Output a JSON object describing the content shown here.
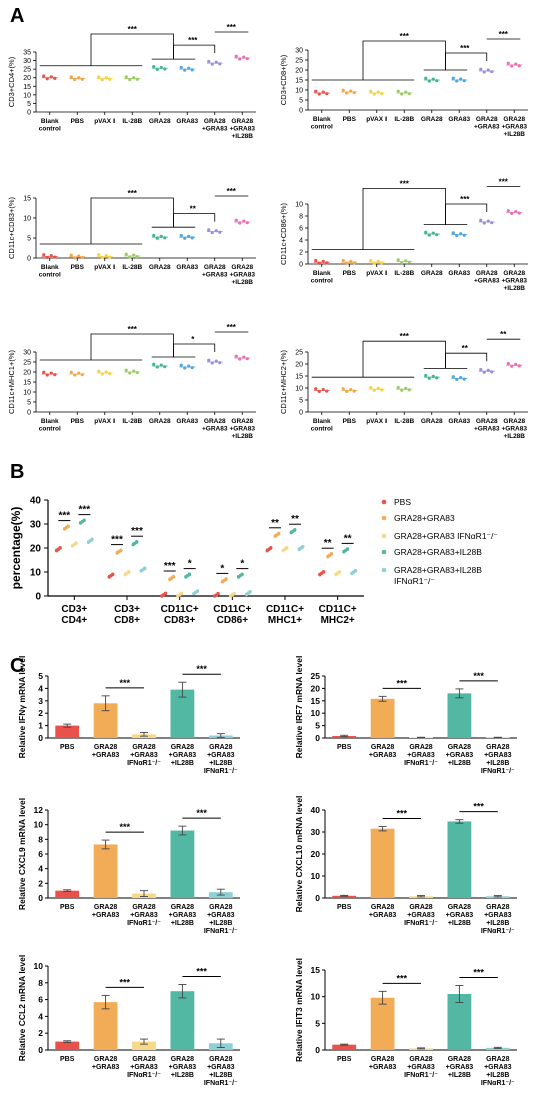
{
  "panel_letters": {
    "A": "A",
    "B": "B",
    "C": "C"
  },
  "colors": {
    "PBS": "#e8524a",
    "GRA28+GRA83": "#f2ac58",
    "GRA28+GRA83 IFNαR1-/-": "#f5d88a",
    "GRA28+GRA83+IL28B": "#52b8a3",
    "GRA28+GRA83+IL28B IFNαR1-/-": "#8fd0d6"
  },
  "panelA": {
    "groups": [
      "Blank control",
      "PBS",
      "pVAX I",
      "IL-28B",
      "GRA28",
      "GRA83",
      "GRA28 +GRA83",
      "GRA28 +GRA83 +IL28B"
    ],
    "group_colors": [
      "#e8524a",
      "#f2a64f",
      "#f3d34a",
      "#9ccc65",
      "#3fb98b",
      "#4fa6e0",
      "#9b8fd8",
      "#ea6fb3"
    ],
    "stars": "***",
    "charts": [
      {
        "ylabel": "CD3+CD4+(%)",
        "ylim": [
          0,
          35
        ],
        "ticks": [
          0,
          5,
          10,
          15,
          20,
          25,
          30,
          35
        ],
        "means": [
          20,
          19.5,
          19.5,
          19.5,
          25.5,
          25,
          28.5,
          31.5
        ],
        "sig": [
          {
            "from": 4,
            "to": 6,
            "label": "***"
          },
          {
            "from": 6,
            "to": 7,
            "label": "***"
          }
        ]
      },
      {
        "ylabel": "CD3+CD8+(%)",
        "ylim": [
          0,
          30
        ],
        "ticks": [
          0,
          5,
          10,
          15,
          20,
          25,
          30
        ],
        "means": [
          8.5,
          9,
          8.5,
          8.5,
          15,
          15,
          19.5,
          22.5
        ],
        "sig": [
          {
            "from": 4,
            "to": 6,
            "label": "***"
          },
          {
            "from": 6,
            "to": 7,
            "label": "***"
          }
        ]
      },
      {
        "ylabel": "CD11c+CD83+(%)",
        "ylim": [
          0,
          15
        ],
        "ticks": [
          0,
          5,
          10,
          15
        ],
        "means": [
          0.4,
          0.3,
          0.4,
          0.5,
          5.2,
          5.2,
          6.6,
          9.0
        ],
        "sig": [
          {
            "from": 4,
            "to": 6,
            "label": "**"
          },
          {
            "from": 6,
            "to": 7,
            "label": "***"
          }
        ]
      },
      {
        "ylabel": "CD11c+CD86+(%)",
        "ylim": [
          0,
          10
        ],
        "ticks": [
          0,
          2,
          4,
          6,
          8,
          10
        ],
        "means": [
          0.3,
          0.3,
          0.3,
          0.4,
          5.0,
          4.9,
          7.0,
          8.6
        ],
        "sig": [
          {
            "from": 4,
            "to": 6,
            "label": "***"
          },
          {
            "from": 6,
            "to": 7,
            "label": "***"
          }
        ]
      },
      {
        "ylabel": "CD11c+MHC1+(%)",
        "ylim": [
          0,
          30
        ],
        "ticks": [
          0,
          5,
          10,
          15,
          20,
          25,
          30
        ],
        "means": [
          19,
          19,
          19.5,
          20,
          23,
          22.5,
          25,
          27
        ],
        "sig": [
          {
            "from": 4,
            "to": 6,
            "label": "*"
          },
          {
            "from": 6,
            "to": 7,
            "label": "***"
          }
        ]
      },
      {
        "ylabel": "CD11c+MHC2+(%)",
        "ylim": [
          0,
          25
        ],
        "ticks": [
          0,
          5,
          10,
          15,
          20,
          25
        ],
        "means": [
          9,
          9,
          9.5,
          9.5,
          14.5,
          14,
          17,
          19.5
        ],
        "sig": [
          {
            "from": 4,
            "to": 6,
            "label": "**"
          },
          {
            "from": 6,
            "to": 7,
            "label": "**"
          }
        ]
      }
    ]
  },
  "panelB": {
    "ylabel": "percentage(%)",
    "ylim": [
      0,
      40
    ],
    "ticks": [
      0,
      10,
      20,
      30,
      40
    ],
    "categories": [
      "CD3+ CD4+",
      "CD3+ CD8+",
      "CD11C+ CD83+",
      "CD11C+ CD86+",
      "CD11C+ MHC1+",
      "CD11C+ MHC2+"
    ],
    "legend": [
      {
        "key": "PBS",
        "label": "PBS"
      },
      {
        "key": "GRA28+GRA83",
        "label": "GRA28+GRA83"
      },
      {
        "key": "GRA28+GRA83 IFNαR1-/-",
        "label": "GRA28+GRA83 IFNαR1⁻/⁻"
      },
      {
        "key": "GRA28+GRA83+IL28B",
        "label": "GRA28+GRA83+IL28B"
      },
      {
        "key": "GRA28+GRA83+IL28B IFNαR1-/-",
        "label": "GRA28+GRA83+IL28B IFNαR1⁻/⁻"
      }
    ],
    "series_values": [
      [
        19.5,
        8.5,
        0.5,
        0.4,
        19.5,
        9.5
      ],
      [
        28.5,
        18.5,
        7.5,
        6.5,
        25.5,
        17.0
      ],
      [
        21.5,
        9.5,
        0.5,
        0.4,
        19.5,
        9.5
      ],
      [
        31.0,
        22.0,
        8.5,
        8.5,
        27.0,
        19.0
      ],
      [
        23.0,
        11.0,
        1.5,
        1.2,
        20.0,
        10.0
      ]
    ],
    "sig": [
      [
        "***",
        "***"
      ],
      [
        "***",
        "***"
      ],
      [
        "***",
        "*"
      ],
      [
        "*",
        "*"
      ],
      [
        "**",
        "**"
      ],
      [
        "**",
        "**"
      ]
    ]
  },
  "panelC": {
    "groups": [
      "PBS",
      "GRA28 +GRA83",
      "GRA28 +GRA83 IFNαR1⁻/⁻",
      "GRA28 +GRA83 +IL28B",
      "GRA28 +GRA83 +IL28B IFNαR1⁻/⁻"
    ],
    "charts": [
      {
        "ylabel": "Relative IFNγ mRNA level",
        "ylim": [
          0,
          5
        ],
        "ticks": [
          0,
          1,
          2,
          3,
          4,
          5
        ],
        "values": [
          1.0,
          2.8,
          0.3,
          3.9,
          0.2
        ],
        "errors": [
          0.12,
          0.6,
          0.15,
          0.6,
          0.15
        ],
        "sig": [
          "***",
          "***"
        ]
      },
      {
        "ylabel": "Relative IRF7 mRNA level",
        "ylim": [
          0,
          25
        ],
        "ticks": [
          0,
          5,
          10,
          15,
          20,
          25
        ],
        "values": [
          0.8,
          15.8,
          0.2,
          18.0,
          0.2
        ],
        "errors": [
          0.3,
          1.0,
          0.1,
          1.8,
          0.1
        ],
        "sig": [
          "***",
          "***"
        ]
      },
      {
        "ylabel": "Relative CXCL9 mRNA level",
        "ylim": [
          0,
          12
        ],
        "ticks": [
          0,
          2,
          4,
          6,
          8,
          10,
          12
        ],
        "values": [
          1.0,
          7.3,
          0.6,
          9.2,
          0.8
        ],
        "errors": [
          0.12,
          0.6,
          0.4,
          0.6,
          0.4
        ],
        "sig": [
          "***",
          "***"
        ]
      },
      {
        "ylabel": "Relative CXCL10 mRNA level",
        "ylim": [
          0,
          40
        ],
        "ticks": [
          0,
          10,
          20,
          30,
          40
        ],
        "values": [
          1.0,
          31.5,
          0.8,
          34.8,
          0.8
        ],
        "errors": [
          0.2,
          1.0,
          0.3,
          0.8,
          0.3
        ],
        "sig": [
          "***",
          "***"
        ]
      },
      {
        "ylabel": "Relative CCL2 mRNA level",
        "ylim": [
          0,
          10
        ],
        "ticks": [
          0,
          2,
          4,
          6,
          8,
          10
        ],
        "values": [
          1.0,
          5.7,
          1.0,
          7.0,
          0.8
        ],
        "errors": [
          0.1,
          0.8,
          0.3,
          0.8,
          0.5
        ],
        "sig": [
          "***",
          "***"
        ]
      },
      {
        "ylabel": "Relative IFIT3 mRNA level",
        "ylim": [
          0,
          15
        ],
        "ticks": [
          0,
          5,
          10,
          15
        ],
        "values": [
          1.0,
          9.8,
          0.3,
          10.5,
          0.4
        ],
        "errors": [
          0.1,
          1.2,
          0.1,
          1.6,
          0.1
        ],
        "sig": [
          "***",
          "***"
        ]
      }
    ]
  },
  "chart_data": [
    {
      "type": "scatter",
      "panel": "A1",
      "ylabel": "CD3+CD4+(%)",
      "categories": [
        "Blank control",
        "PBS",
        "pVAX I",
        "IL-28B",
        "GRA28",
        "GRA83",
        "GRA28 +GRA83",
        "GRA28 +GRA83 +IL28B"
      ],
      "values": [
        20,
        19.5,
        19.5,
        19.5,
        25.5,
        25,
        28.5,
        31.5
      ],
      "ylim": [
        0,
        35
      ]
    },
    {
      "type": "scatter",
      "panel": "A2",
      "ylabel": "CD3+CD8+(%)",
      "categories": [
        "Blank control",
        "PBS",
        "pVAX I",
        "IL-28B",
        "GRA28",
        "GRA83",
        "GRA28 +GRA83",
        "GRA28 +GRA83 +IL28B"
      ],
      "values": [
        8.5,
        9,
        8.5,
        8.5,
        15,
        15,
        19.5,
        22.5
      ],
      "ylim": [
        0,
        30
      ]
    },
    {
      "type": "scatter",
      "panel": "A3",
      "ylabel": "CD11c+CD83+(%)",
      "categories": [
        "Blank control",
        "PBS",
        "pVAX I",
        "IL-28B",
        "GRA28",
        "GRA83",
        "GRA28 +GRA83",
        "GRA28 +GRA83 +IL28B"
      ],
      "values": [
        0.4,
        0.3,
        0.4,
        0.5,
        5.2,
        5.2,
        6.6,
        9.0
      ],
      "ylim": [
        0,
        15
      ]
    },
    {
      "type": "scatter",
      "panel": "A4",
      "ylabel": "CD11c+CD86+(%)",
      "categories": [
        "Blank control",
        "PBS",
        "pVAX I",
        "IL-28B",
        "GRA28",
        "GRA83",
        "GRA28 +GRA83",
        "GRA28 +GRA83 +IL28B"
      ],
      "values": [
        0.3,
        0.3,
        0.3,
        0.4,
        5.0,
        4.9,
        7.0,
        8.6
      ],
      "ylim": [
        0,
        10
      ]
    },
    {
      "type": "scatter",
      "panel": "A5",
      "ylabel": "CD11c+MHC1+(%)",
      "categories": [
        "Blank control",
        "PBS",
        "pVAX I",
        "IL-28B",
        "GRA28",
        "GRA83",
        "GRA28 +GRA83",
        "GRA28 +GRA83 +IL28B"
      ],
      "values": [
        19,
        19,
        19.5,
        20,
        23,
        22.5,
        25,
        27
      ],
      "ylim": [
        0,
        30
      ]
    },
    {
      "type": "scatter",
      "panel": "A6",
      "ylabel": "CD11c+MHC2+(%)",
      "categories": [
        "Blank control",
        "PBS",
        "pVAX I",
        "IL-28B",
        "GRA28",
        "GRA83",
        "GRA28 +GRA83",
        "GRA28 +GRA83 +IL28B"
      ],
      "values": [
        9,
        9,
        9.5,
        9.5,
        14.5,
        14,
        17,
        19.5
      ],
      "ylim": [
        0,
        25
      ]
    },
    {
      "type": "scatter",
      "panel": "B",
      "ylabel": "percentage(%)",
      "categories": [
        "CD3+ CD4+",
        "CD3+ CD8+",
        "CD11C+ CD83+",
        "CD11C+ CD86+",
        "CD11C+ MHC1+",
        "CD11C+ MHC2+"
      ],
      "series": [
        {
          "name": "PBS",
          "values": [
            19.5,
            8.5,
            0.5,
            0.4,
            19.5,
            9.5
          ]
        },
        {
          "name": "GRA28+GRA83",
          "values": [
            28.5,
            18.5,
            7.5,
            6.5,
            25.5,
            17.0
          ]
        },
        {
          "name": "GRA28+GRA83 IFNαR1⁻/⁻",
          "values": [
            21.5,
            9.5,
            0.5,
            0.4,
            19.5,
            9.5
          ]
        },
        {
          "name": "GRA28+GRA83+IL28B",
          "values": [
            31.0,
            22.0,
            8.5,
            8.5,
            27.0,
            19.0
          ]
        },
        {
          "name": "GRA28+GRA83+IL28B IFNαR1⁻/⁻",
          "values": [
            23.0,
            11.0,
            1.5,
            1.2,
            20.0,
            10.0
          ]
        }
      ],
      "ylim": [
        0,
        40
      ]
    },
    {
      "type": "bar",
      "panel": "C1",
      "ylabel": "Relative IFNγ mRNA level",
      "categories": [
        "PBS",
        "GRA28 +GRA83",
        "GRA28 +GRA83 IFNαR1⁻/⁻",
        "GRA28 +GRA83 +IL28B",
        "GRA28 +GRA83 +IL28B IFNαR1⁻/⁻"
      ],
      "values": [
        1.0,
        2.8,
        0.3,
        3.9,
        0.2
      ],
      "ylim": [
        0,
        5
      ]
    },
    {
      "type": "bar",
      "panel": "C2",
      "ylabel": "Relative IRF7 mRNA level",
      "categories": [
        "PBS",
        "GRA28 +GRA83",
        "GRA28 +GRA83 IFNαR1⁻/⁻",
        "GRA28 +GRA83 +IL28B",
        "GRA28 +GRA83 +IL28B IFNαR1⁻/⁻"
      ],
      "values": [
        0.8,
        15.8,
        0.2,
        18.0,
        0.2
      ],
      "ylim": [
        0,
        25
      ]
    },
    {
      "type": "bar",
      "panel": "C3",
      "ylabel": "Relative CXCL9 mRNA level",
      "categories": [
        "PBS",
        "GRA28 +GRA83",
        "GRA28 +GRA83 IFNαR1⁻/⁻",
        "GRA28 +GRA83 +IL28B",
        "GRA28 +GRA83 +IL28B IFNαR1⁻/⁻"
      ],
      "values": [
        1.0,
        7.3,
        0.6,
        9.2,
        0.8
      ],
      "ylim": [
        0,
        12
      ]
    },
    {
      "type": "bar",
      "panel": "C4",
      "ylabel": "Relative CXCL10 mRNA level",
      "categories": [
        "PBS",
        "GRA28 +GRA83",
        "GRA28 +GRA83 IFNαR1⁻/⁻",
        "GRA28 +GRA83 +IL28B",
        "GRA28 +GRA83 +IL28B IFNαR1⁻/⁻"
      ],
      "values": [
        1.0,
        31.5,
        0.8,
        34.8,
        0.8
      ],
      "ylim": [
        0,
        40
      ]
    },
    {
      "type": "bar",
      "panel": "C5",
      "ylabel": "Relative CCL2 mRNA level",
      "categories": [
        "PBS",
        "GRA28 +GRA83",
        "GRA28 +GRA83 IFNαR1⁻/⁻",
        "GRA28 +GRA83 +IL28B",
        "GRA28 +GRA83 +IL28B IFNαR1⁻/⁻"
      ],
      "values": [
        1.0,
        5.7,
        1.0,
        7.0,
        0.8
      ],
      "ylim": [
        0,
        10
      ]
    },
    {
      "type": "bar",
      "panel": "C6",
      "ylabel": "Relative IFIT3 mRNA level",
      "categories": [
        "PBS",
        "GRA28 +GRA83",
        "GRA28 +GRA83 IFNαR1⁻/⁻",
        "GRA28 +GRA83 +IL28B",
        "GRA28 +GRA83 +IL28B IFNαR1⁻/⁻"
      ],
      "values": [
        1.0,
        9.8,
        0.3,
        10.5,
        0.4
      ],
      "ylim": [
        0,
        15
      ]
    }
  ]
}
